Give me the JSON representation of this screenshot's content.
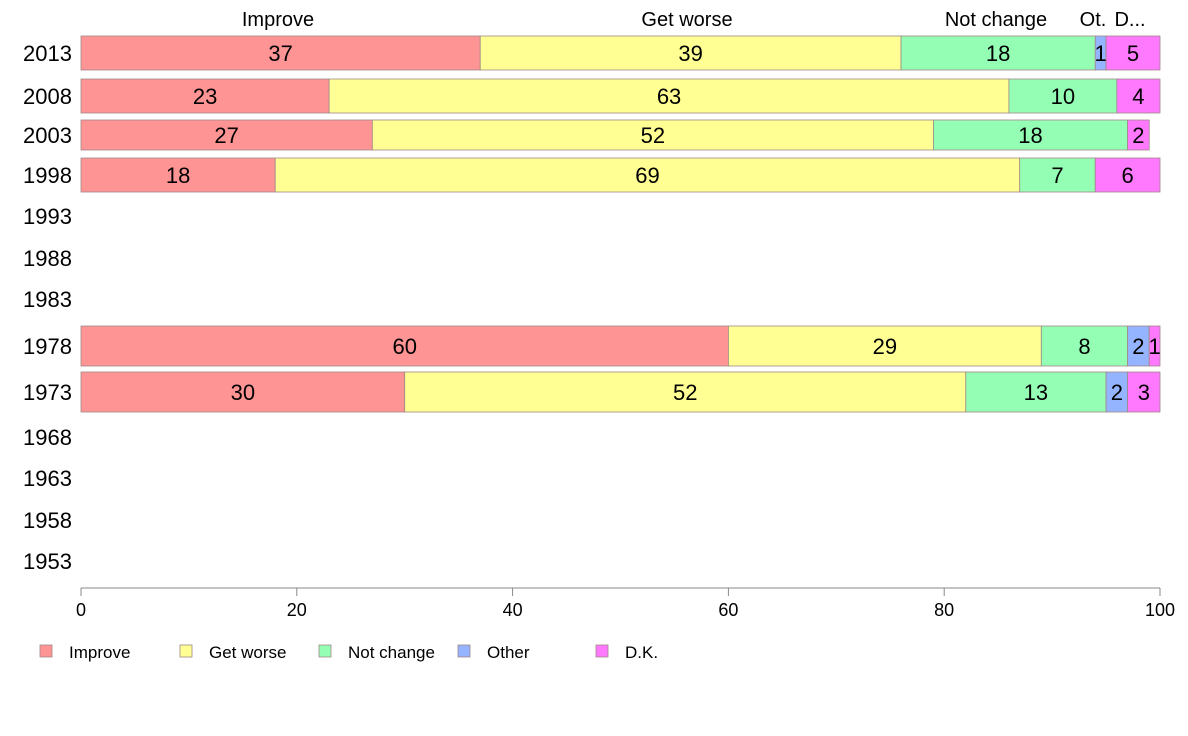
{
  "chart_data": {
    "type": "bar",
    "orientation": "horizontal",
    "stacked": true,
    "categories": [
      "2013",
      "2008",
      "2003",
      "1998",
      "1993",
      "1988",
      "1983",
      "1978",
      "1973",
      "1968",
      "1963",
      "1958",
      "1953"
    ],
    "series": [
      {
        "name": "Improve",
        "color": "#FF9494",
        "values": [
          37,
          23,
          27,
          18,
          null,
          null,
          null,
          60,
          30,
          null,
          null,
          null,
          null
        ]
      },
      {
        "name": "Get worse",
        "color": "#FFFF94",
        "values": [
          39,
          63,
          52,
          69,
          null,
          null,
          null,
          29,
          52,
          null,
          null,
          null,
          null
        ]
      },
      {
        "name": "Not change",
        "color": "#94FFB4",
        "values": [
          18,
          10,
          18,
          7,
          null,
          null,
          null,
          8,
          13,
          null,
          null,
          null,
          null
        ]
      },
      {
        "name": "Other",
        "color": "#94B4FF",
        "values": [
          1,
          0,
          0,
          0,
          null,
          null,
          null,
          2,
          2,
          null,
          null,
          null,
          null
        ]
      },
      {
        "name": "D.K.",
        "color": "#FF79FF",
        "values": [
          5,
          4,
          2,
          6,
          null,
          null,
          null,
          1,
          3,
          null,
          null,
          null,
          null
        ]
      }
    ],
    "top_labels": [
      "Improve",
      "Get worse",
      "Not change",
      "Ot.",
      "D..."
    ],
    "xlim": [
      0,
      100
    ],
    "xticks": [
      0,
      20,
      40,
      60,
      80,
      100
    ],
    "grid": false,
    "legend_position": "bottom"
  }
}
